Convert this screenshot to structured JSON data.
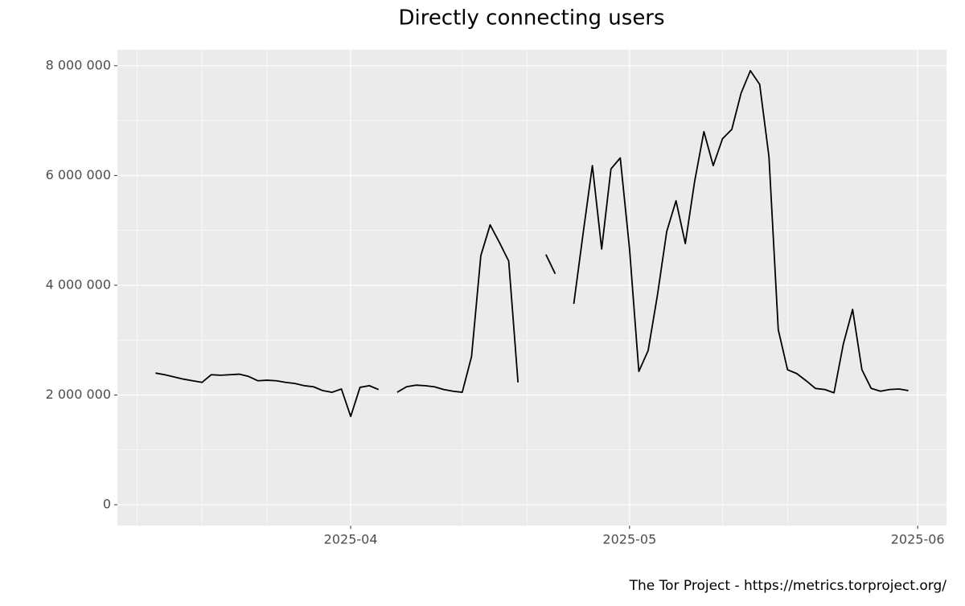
{
  "chart_data": {
    "type": "line",
    "title": "Directly connecting users",
    "caption": "The Tor Project - https://metrics.torproject.org/",
    "x": [
      0,
      1,
      2,
      3,
      4,
      5,
      6,
      7,
      8,
      9,
      10,
      11,
      12,
      13,
      14,
      15,
      16,
      17,
      18,
      19,
      20,
      21,
      22,
      23,
      24,
      25,
      26,
      27,
      28,
      29,
      30,
      31,
      32,
      33,
      34,
      35,
      36,
      37,
      38,
      39,
      40,
      41,
      42,
      43,
      44,
      45,
      46,
      47,
      48,
      49,
      50,
      51,
      52,
      53,
      54,
      55,
      56,
      57,
      58,
      59,
      60,
      61,
      62,
      63,
      64,
      65,
      66,
      67,
      68,
      69,
      70,
      71,
      72,
      73,
      74,
      75,
      76,
      77,
      78,
      79,
      80,
      81
    ],
    "series": [
      {
        "color": "#000000",
        "values": [
          2400000,
          2370000,
          2330000,
          2290000,
          2260000,
          2230000,
          2370000,
          2360000,
          2370000,
          2380000,
          2340000,
          2260000,
          2270000,
          2260000,
          2230000,
          2210000,
          2170000,
          2150000,
          2080000,
          2050000,
          2110000,
          1610000,
          2140000,
          2170000,
          2100000,
          null,
          2050000,
          2150000,
          2180000,
          2170000,
          2150000,
          2100000,
          2070000,
          2050000,
          2700000,
          4540000,
          5100000,
          4780000,
          4440000,
          2230000,
          null,
          null,
          4560000,
          4210000,
          null,
          3660000,
          4940000,
          6180000,
          4660000,
          6120000,
          6320000,
          4660000,
          2430000,
          2810000,
          3820000,
          4980000,
          5540000,
          4760000,
          5890000,
          6800000,
          6180000,
          6670000,
          6840000,
          7500000,
          7910000,
          7660000,
          6340000,
          3190000,
          2460000,
          2390000,
          2260000,
          2120000,
          2100000,
          2040000,
          2930000,
          3560000,
          2460000,
          2120000,
          2070000,
          2100000,
          2110000,
          2080000
        ]
      }
    ],
    "xlim": [
      -4.1,
      85.1
    ],
    "xticks": [
      {
        "value": 21,
        "label": "2025-04"
      },
      {
        "value": 51,
        "label": "2025-05"
      },
      {
        "value": 82,
        "label": "2025-06"
      }
    ],
    "xminor": [
      -2,
      5,
      12,
      33,
      40,
      61,
      68
    ],
    "ylim": [
      -380000,
      8290000
    ],
    "yticks": [
      0,
      {
        "value": 2000000,
        "label": "2 000 000"
      },
      {
        "value": 4000000,
        "label": "4 000 000"
      },
      {
        "value": 6000000,
        "label": "6 000 000"
      },
      {
        "value": 8000000,
        "label": "8 000 000"
      }
    ],
    "yminor": [
      1000000,
      3000000,
      5000000,
      7000000
    ],
    "grid": true
  }
}
